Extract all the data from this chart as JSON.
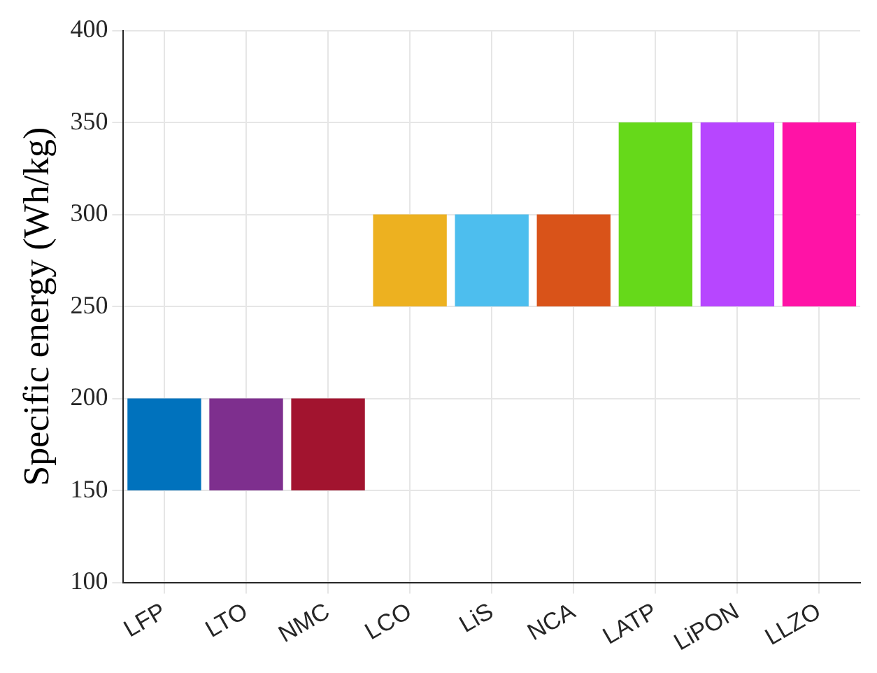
{
  "chart_data": {
    "type": "bar",
    "ylabel": "Specific energy (Wh/kg)",
    "categories": [
      "LFP",
      "LTO",
      "NMC",
      "LCO",
      "LiS",
      "NCA",
      "LATP",
      "LiPON",
      "LLZO"
    ],
    "base": [
      150,
      150,
      150,
      250,
      250,
      250,
      250,
      250,
      250
    ],
    "values": [
      50,
      50,
      50,
      50,
      50,
      50,
      100,
      100,
      100
    ],
    "colors": [
      "#0072bd",
      "#7e2f8e",
      "#a2142f",
      "#edb120",
      "#4dbeee",
      "#d95319",
      "#66d91a",
      "#b746ff",
      "#ff13a6"
    ],
    "ylim": [
      100,
      400
    ],
    "yticks": [
      100,
      150,
      200,
      250,
      300,
      350,
      400
    ],
    "grid": true
  }
}
